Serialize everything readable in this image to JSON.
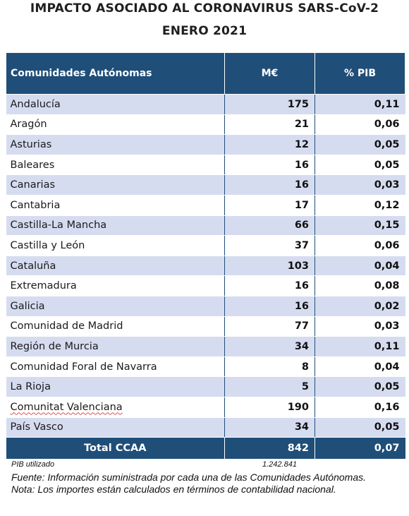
{
  "title_line1": "IMPACTO ASOCIADO AL CORONAVIRUS SARS-CoV-2",
  "title_line2": "ENERO 2021",
  "table": {
    "headers": [
      "Comunidades Autónomas",
      "M€",
      "% PIB"
    ],
    "rows": [
      {
        "name": "Andalucía",
        "meur": "175",
        "pib": "0,11"
      },
      {
        "name": "Aragón",
        "meur": "21",
        "pib": "0,06"
      },
      {
        "name": "Asturias",
        "meur": "12",
        "pib": "0,05"
      },
      {
        "name": "Baleares",
        "meur": "16",
        "pib": "0,05"
      },
      {
        "name": "Canarias",
        "meur": "16",
        "pib": "0,03"
      },
      {
        "name": "Cantabria",
        "meur": "17",
        "pib": "0,12"
      },
      {
        "name": "Castilla-La Mancha",
        "meur": "66",
        "pib": "0,15"
      },
      {
        "name": "Castilla y León",
        "meur": "37",
        "pib": "0,06"
      },
      {
        "name": "Cataluña",
        "meur": "103",
        "pib": "0,04"
      },
      {
        "name": "Extremadura",
        "meur": "16",
        "pib": "0,08"
      },
      {
        "name": "Galicia",
        "meur": "16",
        "pib": "0,02"
      },
      {
        "name": "Comunidad de Madrid",
        "meur": "77",
        "pib": "0,03"
      },
      {
        "name": "Región de Murcia",
        "meur": "34",
        "pib": "0,11"
      },
      {
        "name": "Comunidad Foral de Navarra",
        "meur": "8",
        "pib": "0,04"
      },
      {
        "name": "La Rioja",
        "meur": "5",
        "pib": "0,05"
      },
      {
        "name": "Comunitat Valenciana",
        "meur": "190",
        "pib": "0,16"
      },
      {
        "name": "País Vasco",
        "meur": "34",
        "pib": "0,05"
      }
    ],
    "total": {
      "name": "Total CCAA",
      "meur": "842",
      "pib": "0,07"
    }
  },
  "pib_label": "PIB utilizado",
  "pib_value": "1.242.841",
  "source_note": "Fuente: Información suministrada por cada una de las Comunidades Autónomas.",
  "method_note": "Nota: Los importes están calculados en términos de contabilidad nacional."
}
